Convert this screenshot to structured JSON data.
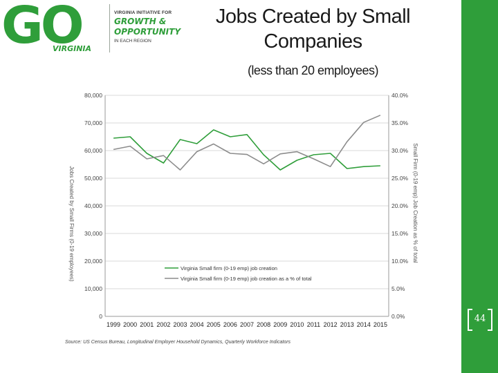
{
  "logo": {
    "big": "GO",
    "state": "VIRGINIA",
    "top": "VIRGINIA INITIATIVE FOR",
    "line1": "GROWTH &",
    "line2": "OPPORTUNITY",
    "bottom": "IN EACH REGION"
  },
  "slide": {
    "title": "Jobs Created by Small Companies",
    "subtitle": "(less than 20 employees)",
    "page_number": "44"
  },
  "colors": {
    "green": "#2f9e3a",
    "gray": "#8c8c8c"
  },
  "chart_data": {
    "type": "line",
    "categories": [
      "1999",
      "2000",
      "2001",
      "2002",
      "2003",
      "2004",
      "2005",
      "2006",
      "2007",
      "2008",
      "2009",
      "2010",
      "2011",
      "2012",
      "2013",
      "2014",
      "2015"
    ],
    "series": [
      {
        "name": "Virginia Small firm (0-19 emp) job creation",
        "axis": "left",
        "color": "#2f9e3a",
        "values": [
          64500,
          65000,
          59000,
          55500,
          64000,
          62500,
          67500,
          65000,
          65800,
          58500,
          53000,
          56500,
          58500,
          59000,
          53500,
          54200,
          54500
        ]
      },
      {
        "name": "Virginia Small firm (0-19 emp) job creation as a % of total",
        "axis": "right",
        "color": "#8c8c8c",
        "values": [
          30.2,
          30.8,
          28.5,
          29.1,
          26.5,
          29.8,
          31.2,
          29.5,
          29.3,
          27.6,
          29.4,
          29.8,
          28.5,
          27.1,
          31.6,
          35.1,
          36.4
        ]
      }
    ],
    "y_left": {
      "range": [
        0,
        80000
      ],
      "ticks": [
        "0",
        "10,000",
        "20,000",
        "30,000",
        "40,000",
        "50,000",
        "60,000",
        "70,000",
        "80,000"
      ],
      "label": "Jobs Created by Small Firms (0-19 employees)"
    },
    "y_right": {
      "range": [
        0,
        40
      ],
      "ticks": [
        "0.0%",
        "5.0%",
        "10.0%",
        "15.0%",
        "20.0%",
        "25.0%",
        "30.0%",
        "35.0%",
        "40.0%"
      ],
      "label": "Small Firm (0-19 emp) Job Creation as % of total"
    },
    "grid": true,
    "legend": "bottom-left",
    "source": "Source: US Census Bureau, Longitudinal Employer Household Dynamics, Quarterly Workforce Indicators"
  }
}
